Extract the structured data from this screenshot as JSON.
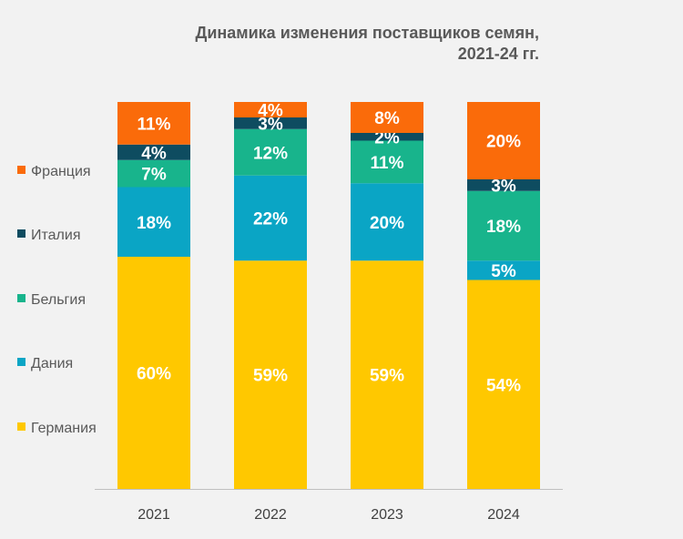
{
  "chart_data": {
    "type": "bar",
    "stacked": true,
    "normalized": true,
    "title": "Динамика изменения поставщиков семян,",
    "subtitle": "2021-24 гг.",
    "categories": [
      "2021",
      "2022",
      "2023",
      "2024"
    ],
    "series": [
      {
        "name": "Германия",
        "color": "#ffc800",
        "values": [
          60,
          59,
          59,
          54
        ],
        "labels": [
          "60%",
          "59%",
          "59%",
          "54%"
        ]
      },
      {
        "name": "Дания",
        "color": "#0aa5c5",
        "values": [
          18,
          22,
          20,
          5
        ],
        "labels": [
          "18%",
          "22%",
          "20%",
          "5%"
        ]
      },
      {
        "name": "Бельгия",
        "color": "#18b48c",
        "values": [
          7,
          12,
          11,
          18
        ],
        "labels": [
          "7%",
          "12%",
          "11%",
          "18%"
        ]
      },
      {
        "name": "Италия",
        "color": "#0e4c60",
        "values": [
          4,
          3,
          2,
          3
        ],
        "labels": [
          "4%",
          "3%",
          "2%",
          "3%"
        ]
      },
      {
        "name": "Франция",
        "color": "#fa6b0a",
        "values": [
          11,
          4,
          8,
          20
        ],
        "labels": [
          "11%",
          "4%",
          "8%",
          "20%"
        ]
      }
    ],
    "legend_position": "left",
    "legend_order": [
      "Франция",
      "Италия",
      "Бельгия",
      "Дания",
      "Германия"
    ],
    "grid": false
  }
}
